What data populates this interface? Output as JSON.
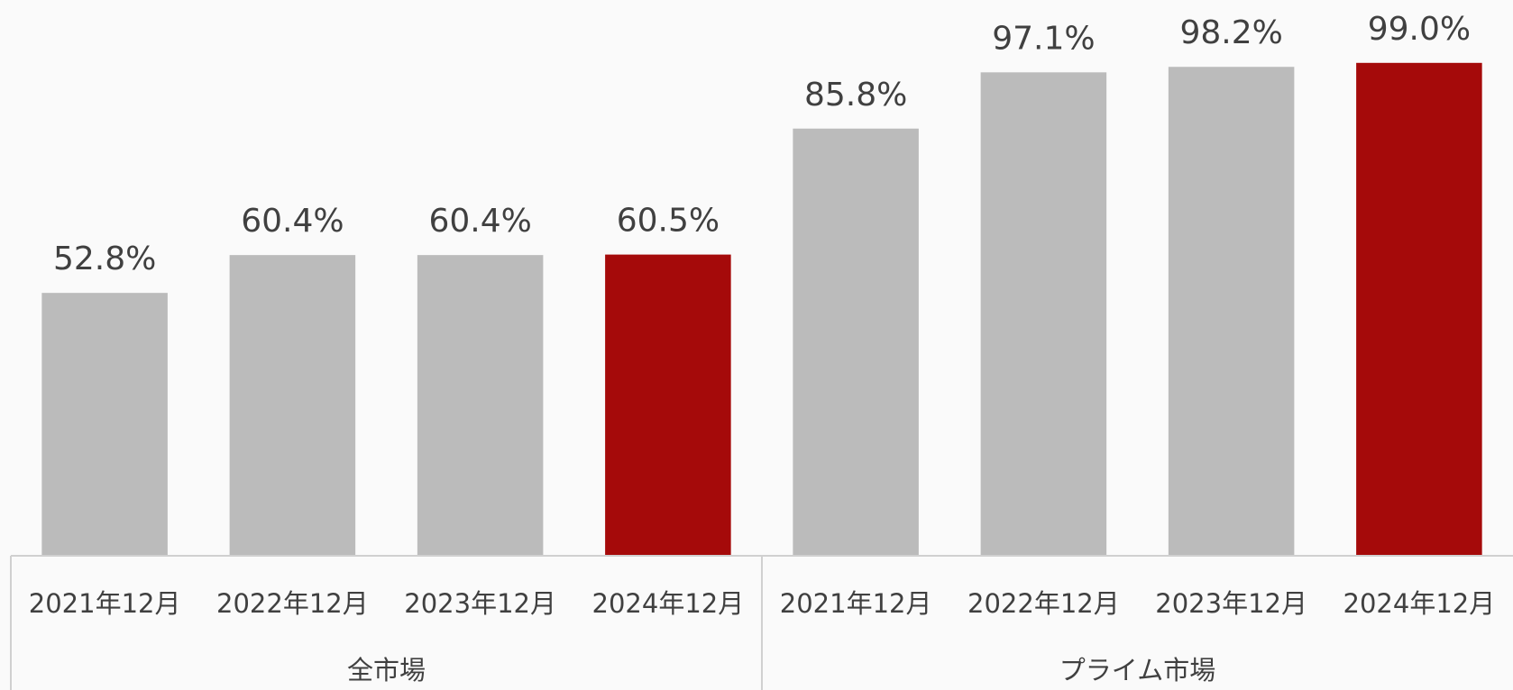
{
  "chart_data": {
    "type": "bar",
    "categories": [
      "2021年12月",
      "2022年12月",
      "2023年12月",
      "2024年12月",
      "2021年12月",
      "2022年12月",
      "2023年12月",
      "2024年12月"
    ],
    "groups": [
      "全市場",
      "プライム市場"
    ],
    "values": [
      52.8,
      60.4,
      60.4,
      60.5,
      85.8,
      97.1,
      98.2,
      99.0
    ],
    "value_labels": [
      "52.8%",
      "60.4%",
      "60.4%",
      "60.5%",
      "85.8%",
      "97.1%",
      "98.2%",
      "99.0%"
    ],
    "colors": [
      "#bbbbbb",
      "#bbbbbb",
      "#bbbbbb",
      "#a50a0a",
      "#bbbbbb",
      "#bbbbbb",
      "#bbbbbb",
      "#a50a0a"
    ],
    "ylim": [
      0,
      110
    ]
  }
}
